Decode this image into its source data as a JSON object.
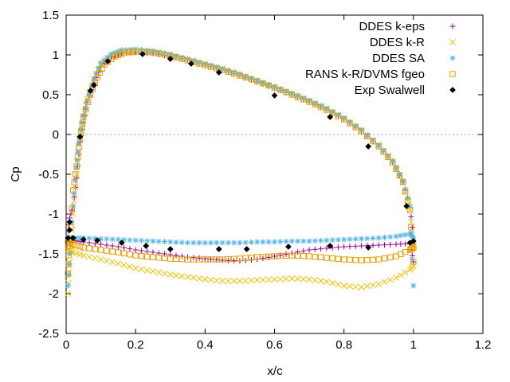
{
  "chart_data": {
    "type": "scatter",
    "xlabel": "x/c",
    "ylabel": "Cp",
    "xlim": [
      0,
      1.2
    ],
    "ylim": [
      -2.5,
      1.5
    ],
    "x_ticks": [
      "0",
      "0.2",
      "0.4",
      "0.6",
      "0.8",
      "1",
      "1.2"
    ],
    "y_ticks": [
      "-2.5",
      "-2",
      "-1.5",
      "-1",
      "-0.5",
      "0",
      "0.5",
      "1",
      "1.5"
    ],
    "grid": false,
    "zero_line": true,
    "legend_position": "top-right",
    "series": [
      {
        "name": "DDES k-eps",
        "marker": "plus",
        "color": "#94009b",
        "upper": [
          [
            0.005,
            -1.3
          ],
          [
            0.01,
            -1.05
          ],
          [
            0.02,
            -0.9
          ],
          [
            0.03,
            -0.55
          ],
          [
            0.04,
            -0.1
          ],
          [
            0.05,
            0.15
          ],
          [
            0.06,
            0.4
          ],
          [
            0.08,
            0.65
          ],
          [
            0.1,
            0.85
          ],
          [
            0.13,
            0.97
          ],
          [
            0.16,
            1.02
          ],
          [
            0.2,
            1.03
          ],
          [
            0.25,
            1.02
          ],
          [
            0.3,
            0.98
          ],
          [
            0.35,
            0.93
          ],
          [
            0.4,
            0.87
          ],
          [
            0.45,
            0.81
          ],
          [
            0.5,
            0.74
          ],
          [
            0.55,
            0.66
          ],
          [
            0.6,
            0.58
          ],
          [
            0.65,
            0.5
          ],
          [
            0.7,
            0.41
          ],
          [
            0.75,
            0.31
          ],
          [
            0.8,
            0.19
          ],
          [
            0.85,
            0.04
          ],
          [
            0.9,
            -0.15
          ],
          [
            0.94,
            -0.35
          ],
          [
            0.97,
            -0.6
          ],
          [
            0.99,
            -0.9
          ],
          [
            1.0,
            -1.3
          ]
        ],
        "lower": [
          [
            0.005,
            -1.32
          ],
          [
            0.02,
            -1.33
          ],
          [
            0.05,
            -1.35
          ],
          [
            0.1,
            -1.38
          ],
          [
            0.15,
            -1.41
          ],
          [
            0.2,
            -1.45
          ],
          [
            0.25,
            -1.48
          ],
          [
            0.3,
            -1.51
          ],
          [
            0.35,
            -1.54
          ],
          [
            0.4,
            -1.56
          ],
          [
            0.45,
            -1.58
          ],
          [
            0.5,
            -1.59
          ],
          [
            0.55,
            -1.57
          ],
          [
            0.6,
            -1.53
          ],
          [
            0.65,
            -1.49
          ],
          [
            0.7,
            -1.45
          ],
          [
            0.75,
            -1.43
          ],
          [
            0.8,
            -1.41
          ],
          [
            0.85,
            -1.4
          ],
          [
            0.9,
            -1.39
          ],
          [
            0.95,
            -1.38
          ],
          [
            0.99,
            -1.37
          ],
          [
            1.0,
            -1.6
          ]
        ]
      },
      {
        "name": "DDES k-R",
        "marker": "cross",
        "color": "#f0c000",
        "upper": [
          [
            0.005,
            -2.0
          ],
          [
            0.01,
            -1.6
          ],
          [
            0.02,
            -1.0
          ],
          [
            0.03,
            -0.5
          ],
          [
            0.04,
            -0.05
          ],
          [
            0.05,
            0.2
          ],
          [
            0.06,
            0.45
          ],
          [
            0.08,
            0.7
          ],
          [
            0.1,
            0.88
          ],
          [
            0.13,
            0.99
          ],
          [
            0.16,
            1.04
          ],
          [
            0.2,
            1.05
          ],
          [
            0.25,
            1.04
          ],
          [
            0.3,
            0.99
          ],
          [
            0.35,
            0.94
          ],
          [
            0.4,
            0.88
          ],
          [
            0.45,
            0.82
          ],
          [
            0.5,
            0.75
          ],
          [
            0.55,
            0.67
          ],
          [
            0.6,
            0.59
          ],
          [
            0.65,
            0.51
          ],
          [
            0.7,
            0.42
          ],
          [
            0.75,
            0.32
          ],
          [
            0.8,
            0.2
          ],
          [
            0.85,
            0.05
          ],
          [
            0.9,
            -0.14
          ],
          [
            0.94,
            -0.34
          ],
          [
            0.97,
            -0.6
          ],
          [
            0.99,
            -0.95
          ],
          [
            1.0,
            -1.4
          ]
        ],
        "lower": [
          [
            0.005,
            -1.45
          ],
          [
            0.02,
            -1.48
          ],
          [
            0.05,
            -1.52
          ],
          [
            0.1,
            -1.57
          ],
          [
            0.15,
            -1.62
          ],
          [
            0.2,
            -1.68
          ],
          [
            0.25,
            -1.72
          ],
          [
            0.3,
            -1.76
          ],
          [
            0.35,
            -1.79
          ],
          [
            0.4,
            -1.82
          ],
          [
            0.45,
            -1.84
          ],
          [
            0.5,
            -1.84
          ],
          [
            0.55,
            -1.83
          ],
          [
            0.6,
            -1.82
          ],
          [
            0.65,
            -1.81
          ],
          [
            0.7,
            -1.82
          ],
          [
            0.75,
            -1.85
          ],
          [
            0.8,
            -1.9
          ],
          [
            0.85,
            -1.92
          ],
          [
            0.9,
            -1.88
          ],
          [
            0.95,
            -1.8
          ],
          [
            0.99,
            -1.7
          ],
          [
            1.0,
            -1.65
          ]
        ]
      },
      {
        "name": "DDES SA",
        "marker": "star",
        "color": "#56b4e9",
        "upper": [
          [
            0.005,
            -1.9
          ],
          [
            0.01,
            -1.5
          ],
          [
            0.02,
            -0.9
          ],
          [
            0.03,
            -0.42
          ],
          [
            0.035,
            -0.12
          ],
          [
            0.045,
            0.15
          ],
          [
            0.06,
            0.42
          ],
          [
            0.08,
            0.7
          ],
          [
            0.1,
            0.9
          ],
          [
            0.13,
            1.01
          ],
          [
            0.16,
            1.06
          ],
          [
            0.2,
            1.07
          ],
          [
            0.25,
            1.05
          ],
          [
            0.3,
            1.01
          ],
          [
            0.35,
            0.95
          ],
          [
            0.4,
            0.89
          ],
          [
            0.45,
            0.83
          ],
          [
            0.5,
            0.76
          ],
          [
            0.55,
            0.68
          ],
          [
            0.6,
            0.6
          ],
          [
            0.65,
            0.52
          ],
          [
            0.7,
            0.43
          ],
          [
            0.75,
            0.33
          ],
          [
            0.8,
            0.21
          ],
          [
            0.85,
            0.06
          ],
          [
            0.9,
            -0.13
          ],
          [
            0.94,
            -0.33
          ],
          [
            0.97,
            -0.58
          ],
          [
            0.99,
            -0.9
          ],
          [
            1.0,
            -1.9
          ]
        ],
        "lower": [
          [
            0.005,
            -1.3
          ],
          [
            0.02,
            -1.3
          ],
          [
            0.05,
            -1.3
          ],
          [
            0.1,
            -1.31
          ],
          [
            0.15,
            -1.32
          ],
          [
            0.2,
            -1.33
          ],
          [
            0.25,
            -1.34
          ],
          [
            0.3,
            -1.35
          ],
          [
            0.35,
            -1.36
          ],
          [
            0.4,
            -1.36
          ],
          [
            0.45,
            -1.36
          ],
          [
            0.5,
            -1.36
          ],
          [
            0.55,
            -1.35
          ],
          [
            0.6,
            -1.35
          ],
          [
            0.65,
            -1.34
          ],
          [
            0.7,
            -1.34
          ],
          [
            0.75,
            -1.33
          ],
          [
            0.8,
            -1.32
          ],
          [
            0.85,
            -1.31
          ],
          [
            0.9,
            -1.3
          ],
          [
            0.95,
            -1.28
          ],
          [
            0.99,
            -1.25
          ],
          [
            1.0,
            -1.3
          ]
        ]
      },
      {
        "name": "RANS k-R/DVMS fgeo",
        "marker": "square",
        "color": "#e69f00",
        "upper": [
          [
            0.005,
            -1.75
          ],
          [
            0.01,
            -1.4
          ],
          [
            0.02,
            -0.7
          ],
          [
            0.03,
            -0.4
          ],
          [
            0.04,
            -0.05
          ],
          [
            0.05,
            0.22
          ],
          [
            0.07,
            0.5
          ],
          [
            0.09,
            0.72
          ],
          [
            0.11,
            0.88
          ],
          [
            0.14,
            0.98
          ],
          [
            0.17,
            1.03
          ],
          [
            0.2,
            1.04
          ],
          [
            0.25,
            1.03
          ],
          [
            0.3,
            0.99
          ],
          [
            0.35,
            0.93
          ],
          [
            0.4,
            0.87
          ],
          [
            0.45,
            0.81
          ],
          [
            0.5,
            0.74
          ],
          [
            0.55,
            0.67
          ],
          [
            0.6,
            0.59
          ],
          [
            0.65,
            0.5
          ],
          [
            0.7,
            0.41
          ],
          [
            0.75,
            0.31
          ],
          [
            0.8,
            0.19
          ],
          [
            0.85,
            0.04
          ],
          [
            0.9,
            -0.15
          ],
          [
            0.94,
            -0.35
          ],
          [
            0.97,
            -0.6
          ],
          [
            0.99,
            -0.95
          ],
          [
            1.0,
            -1.6
          ]
        ],
        "lower": [
          [
            0.005,
            -1.35
          ],
          [
            0.02,
            -1.38
          ],
          [
            0.05,
            -1.42
          ],
          [
            0.1,
            -1.45
          ],
          [
            0.15,
            -1.48
          ],
          [
            0.2,
            -1.52
          ],
          [
            0.25,
            -1.54
          ],
          [
            0.3,
            -1.56
          ],
          [
            0.35,
            -1.57
          ],
          [
            0.4,
            -1.57
          ],
          [
            0.45,
            -1.57
          ],
          [
            0.5,
            -1.56
          ],
          [
            0.55,
            -1.54
          ],
          [
            0.6,
            -1.53
          ],
          [
            0.65,
            -1.52
          ],
          [
            0.7,
            -1.53
          ],
          [
            0.75,
            -1.55
          ],
          [
            0.8,
            -1.57
          ],
          [
            0.85,
            -1.58
          ],
          [
            0.9,
            -1.57
          ],
          [
            0.95,
            -1.53
          ],
          [
            0.99,
            -1.45
          ],
          [
            1.0,
            -1.42
          ]
        ]
      },
      {
        "name": "Exp Swalwell",
        "marker": "diamond",
        "color": "#000000",
        "upper": [
          [
            0.005,
            -1.3
          ],
          [
            0.01,
            -1.1
          ],
          [
            0.04,
            -0.03
          ],
          [
            0.07,
            0.55
          ],
          [
            0.08,
            0.62
          ],
          [
            0.12,
            0.92
          ],
          [
            0.22,
            1.01
          ],
          [
            0.3,
            0.95
          ],
          [
            0.36,
            0.89
          ],
          [
            0.44,
            0.78
          ],
          [
            0.6,
            0.49
          ],
          [
            0.76,
            0.22
          ],
          [
            0.87,
            -0.15
          ],
          [
            0.98,
            -0.9
          ]
        ],
        "lower": [
          [
            0.01,
            -1.2
          ],
          [
            0.02,
            -1.3
          ],
          [
            0.05,
            -1.32
          ],
          [
            0.09,
            -1.33
          ],
          [
            0.16,
            -1.36
          ],
          [
            0.23,
            -1.4
          ],
          [
            0.3,
            -1.44
          ],
          [
            0.44,
            -1.44
          ],
          [
            0.52,
            -1.44
          ],
          [
            0.64,
            -1.41
          ],
          [
            0.76,
            -1.4
          ],
          [
            0.87,
            -1.42
          ],
          [
            0.99,
            -1.36
          ],
          [
            1.0,
            -1.34
          ]
        ]
      }
    ]
  }
}
